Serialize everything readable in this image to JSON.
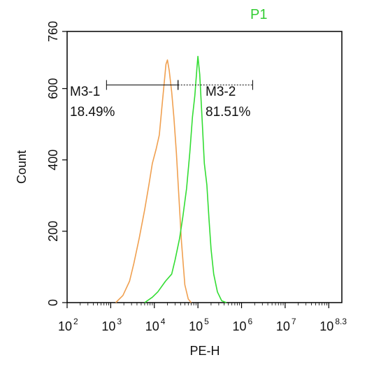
{
  "chart_data": {
    "type": "line",
    "title": "P1",
    "title_color": "#33cc33",
    "xlabel": "PE-H",
    "ylabel": "Count",
    "x_scale": "log10",
    "xlim": [
      100,
      199526231
    ],
    "ylim": [
      0,
      760
    ],
    "x_ticks": [
      {
        "value": 100,
        "base": "10",
        "exp": "2"
      },
      {
        "value": 1000,
        "base": "10",
        "exp": "3"
      },
      {
        "value": 10000,
        "base": "10",
        "exp": "4"
      },
      {
        "value": 100000,
        "base": "10",
        "exp": "5"
      },
      {
        "value": 1000000,
        "base": "10",
        "exp": "6"
      },
      {
        "value": 10000000,
        "base": "10",
        "exp": "7"
      },
      {
        "value": 100000000,
        "base": "10",
        "exp": "8.3"
      }
    ],
    "y_ticks": [
      0,
      200,
      400,
      600,
      760
    ],
    "series": [
      {
        "color": "#f0a050",
        "x": [
          1300,
          1900,
          2700,
          3400,
          4500,
          6000,
          7500,
          9000,
          11000,
          13000,
          15000,
          17000,
          18500,
          20000,
          22000,
          25000,
          28000,
          32000,
          36000,
          42000,
          50000,
          60000,
          70000
        ],
        "y": [
          0,
          20,
          60,
          110,
          180,
          260,
          330,
          390,
          430,
          470,
          550,
          620,
          668,
          680,
          650,
          590,
          520,
          420,
          310,
          170,
          50,
          10,
          0
        ]
      },
      {
        "color": "#33dd33",
        "x": [
          6000,
          9000,
          12000,
          18000,
          25000,
          30000,
          38000,
          45000,
          55000,
          65000,
          75000,
          85000,
          95000,
          100000,
          110000,
          125000,
          140000,
          160000,
          180000,
          200000,
          230000,
          280000,
          350000,
          450000
        ],
        "y": [
          0,
          15,
          30,
          60,
          80,
          120,
          180,
          240,
          320,
          420,
          520,
          580,
          660,
          690,
          640,
          510,
          390,
          330,
          230,
          150,
          80,
          30,
          5,
          0
        ]
      }
    ],
    "markers": [
      {
        "name": "M3-1",
        "percent": "18.49%",
        "range": [
          800,
          35000
        ],
        "y": 610
      },
      {
        "name": "M3-2",
        "percent": "81.51%",
        "range": [
          35000,
          1800000
        ],
        "y": 610
      }
    ]
  }
}
